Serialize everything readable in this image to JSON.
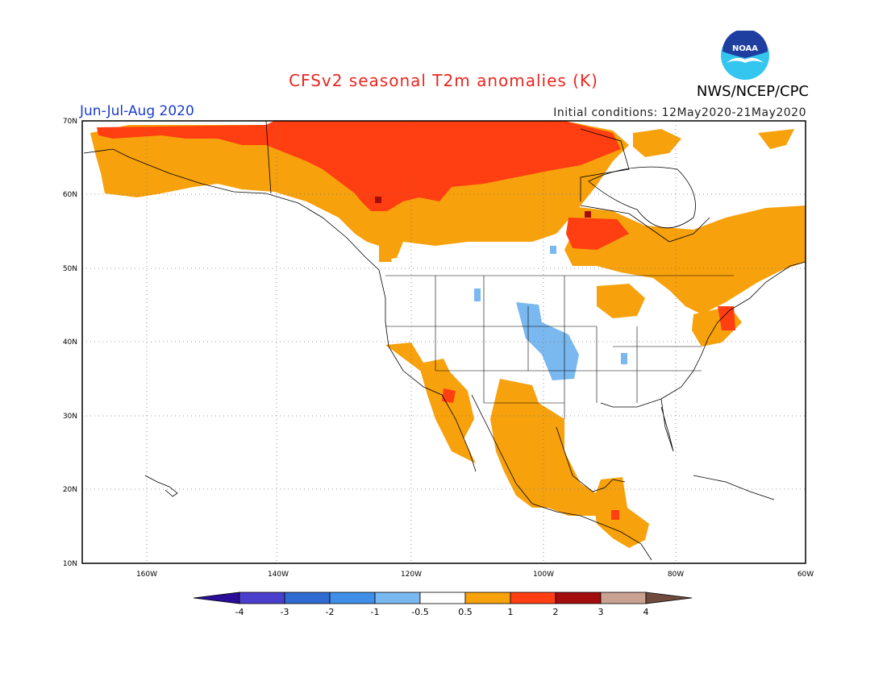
{
  "title": "CFSv2 seasonal T2m anomalies (K)",
  "period": "Jun-Jul-Aug 2020",
  "initial_conditions": "Initial conditions: 12May2020-21May2020",
  "agency": "NWS/NCEP/CPC",
  "logo": {
    "text": "NOAA",
    "colors": {
      "blue": "#1e3fa0",
      "cyan": "#35c6ef",
      "gull": "#ffffff"
    }
  },
  "map": {
    "region": "North America",
    "lon_range": [
      -172,
      -60
    ],
    "lat_range": [
      10,
      70
    ],
    "lat_ticks": [
      {
        "lat": 70,
        "label": "70N"
      },
      {
        "lat": 60,
        "label": "60N"
      },
      {
        "lat": 50,
        "label": "50N"
      },
      {
        "lat": 40,
        "label": "40N"
      },
      {
        "lat": 30,
        "label": "30N"
      },
      {
        "lat": 20,
        "label": "20N"
      },
      {
        "lat": 10,
        "label": "10N"
      }
    ],
    "lon_ticks": [
      {
        "lon": -160,
        "label": "160W"
      },
      {
        "lon": -140,
        "label": "140W"
      },
      {
        "lon": -120,
        "label": "120W"
      },
      {
        "lon": -100,
        "label": "100W"
      },
      {
        "lon": -80,
        "label": "80W"
      },
      {
        "lon": -60,
        "label": "60W"
      }
    ],
    "grid": "dotted"
  },
  "colorbar": {
    "labels": [
      "-4",
      "-3",
      "-2",
      "-1",
      "-0.5",
      "0.5",
      "1",
      "2",
      "3",
      "4"
    ],
    "colors": [
      "#2a0e99",
      "#4a3fcc",
      "#2f6bd0",
      "#3f8ee8",
      "#7ab8f0",
      "#ffffff",
      "#f7a10c",
      "#ff3f12",
      "#a40d0d",
      "#c9a292",
      "#6e4b3d"
    ]
  },
  "anomaly_regions": [
    {
      "name": "Northern Canada / Alaska North Slope",
      "category": "1 to 2 K"
    },
    {
      "name": "Southern Canada / Alaska",
      "category": "0.5 to 1 K"
    },
    {
      "name": "Central Plains",
      "category": "-1 to -0.5 K"
    },
    {
      "name": "Mexico / Southwest US",
      "category": "0.5 to 1 K"
    },
    {
      "name": "Quebec / Maritimes",
      "category": "0.5 to 1 K"
    },
    {
      "name": "Mackenzie region",
      "category": "2 to 3 K"
    }
  ]
}
